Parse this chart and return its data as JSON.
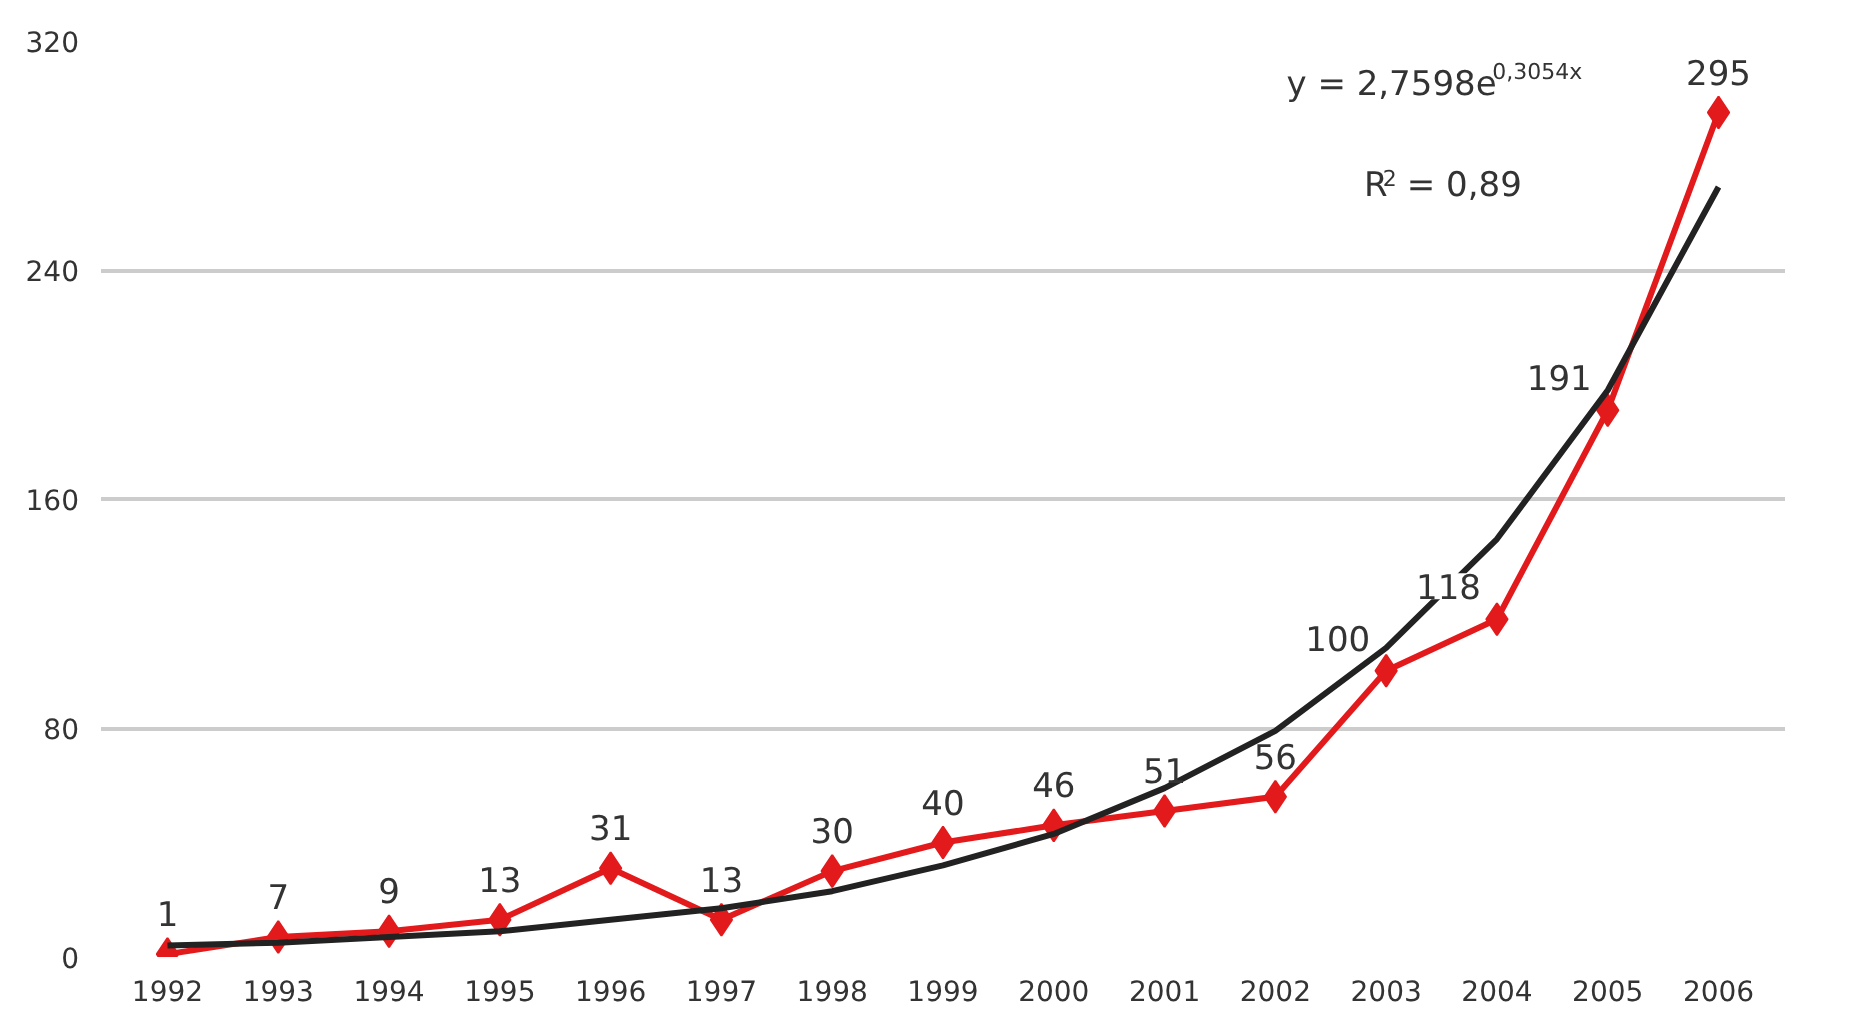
{
  "chart_data": {
    "type": "line",
    "categories": [
      "1992",
      "1993",
      "1994",
      "1995",
      "1996",
      "1997",
      "1998",
      "1999",
      "2000",
      "2001",
      "2002",
      "2003",
      "2004",
      "2005",
      "2006"
    ],
    "series": [
      {
        "color": "#e31a1c",
        "marker": "diamond",
        "values": [
          1,
          7,
          9,
          13,
          31,
          13,
          30,
          40,
          46,
          51,
          56,
          100,
          118,
          191,
          295
        ],
        "value_labels": [
          "1",
          "7",
          "9",
          "13",
          "31",
          "13",
          "30",
          "40",
          "46",
          "51",
          "56",
          "100",
          "118",
          "191",
          "295"
        ]
      },
      {
        "color": "#222222",
        "marker": "none",
        "values": [
          4,
          5,
          7,
          9,
          13,
          17,
          23,
          32,
          43,
          59,
          79,
          108,
          146,
          198,
          269
        ]
      }
    ],
    "ylim": [
      0,
      320
    ],
    "yticks": [
      0,
      80,
      160,
      240,
      320
    ],
    "grid": "y",
    "annotations": [
      "y = 2,7598e$^{0,3054x}$",
      "R$^{2}$ = 0,89"
    ]
  }
}
